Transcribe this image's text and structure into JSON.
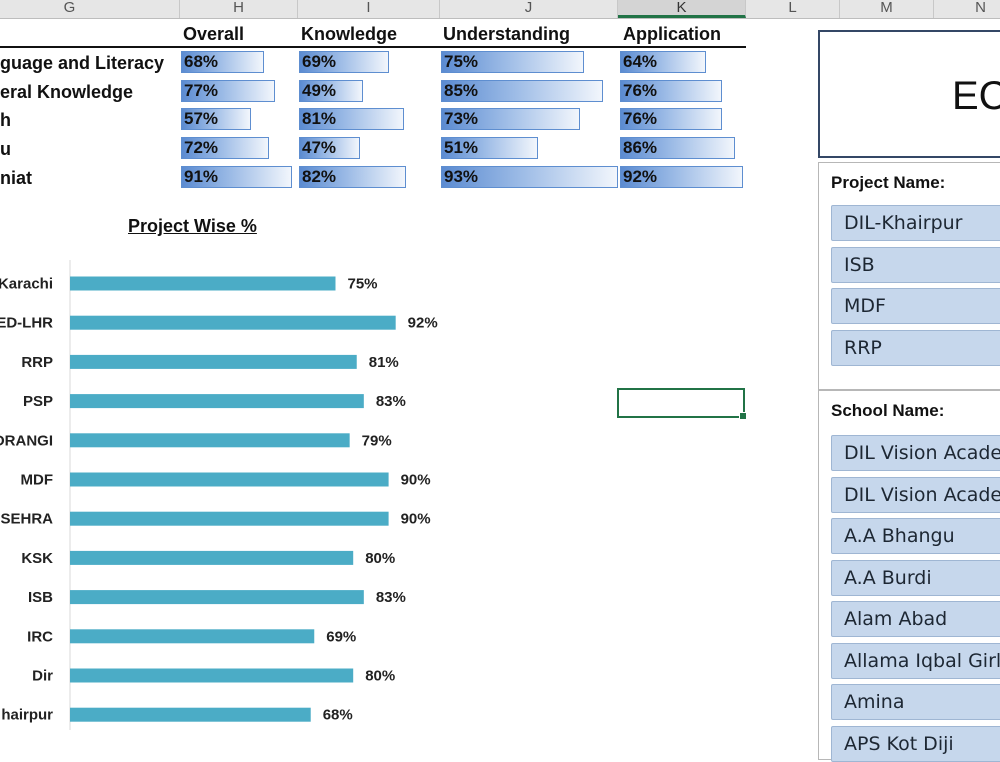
{
  "columns": [
    "G",
    "H",
    "I",
    "J",
    "K",
    "L",
    "M",
    "N"
  ],
  "score_table": {
    "headers": [
      "Overall",
      "Knowledge",
      "Understanding",
      "Application"
    ],
    "rows": [
      {
        "label": "guage and Literacy",
        "values": [
          "68%",
          "69%",
          "75%",
          "64%"
        ],
        "levels": [
          68,
          69,
          75,
          64
        ]
      },
      {
        "label": "eral Knowledge",
        "values": [
          "77%",
          "49%",
          "85%",
          "76%"
        ],
        "levels": [
          77,
          49,
          85,
          76
        ]
      },
      {
        "label": "h",
        "values": [
          "57%",
          "81%",
          "73%",
          "76%"
        ],
        "levels": [
          57,
          81,
          73,
          76
        ]
      },
      {
        "label": "u",
        "values": [
          "72%",
          "47%",
          "51%",
          "86%"
        ],
        "levels": [
          72,
          47,
          51,
          86
        ]
      },
      {
        "label": "niat",
        "values": [
          "91%",
          "82%",
          "93%",
          "92%"
        ],
        "levels": [
          91,
          82,
          93,
          92
        ]
      }
    ]
  },
  "chart_data": {
    "type": "bar",
    "orientation": "horizontal",
    "title": "Project Wise %",
    "categories": [
      "Karachi",
      "ED-LHR",
      "RRP",
      "PSP",
      "ORANGI",
      "MDF",
      "NSEHRA",
      "KSK",
      "ISB",
      "IRC",
      "Dir",
      "hairpur"
    ],
    "values": [
      75,
      92,
      81,
      83,
      79,
      90,
      90,
      80,
      83,
      69,
      80,
      68
    ],
    "value_labels": [
      "75%",
      "92%",
      "81%",
      "83%",
      "79%",
      "90%",
      "90%",
      "80%",
      "83%",
      "69%",
      "80%",
      "68%"
    ],
    "xlim": [
      0,
      100
    ],
    "grid": false,
    "bar_color": "#4bacc6"
  },
  "title_box": {
    "text": "EC"
  },
  "project_slicer": {
    "header": "Project Name:",
    "items": [
      "DIL-Khairpur",
      "ISB",
      "MDF",
      "RRP"
    ]
  },
  "school_slicer": {
    "header": "School Name:",
    "items": [
      "DIL Vision Academy",
      "DIL Vision Academy",
      "A.A Bhangu",
      "A.A Burdi",
      "Alam Abad",
      "Allama Iqbal Girls",
      "Amina",
      "APS Kot Diji"
    ]
  },
  "colors": {
    "accent": "#217346",
    "bar": "#4bacc6",
    "slicer_item": "#c6d7ec"
  }
}
